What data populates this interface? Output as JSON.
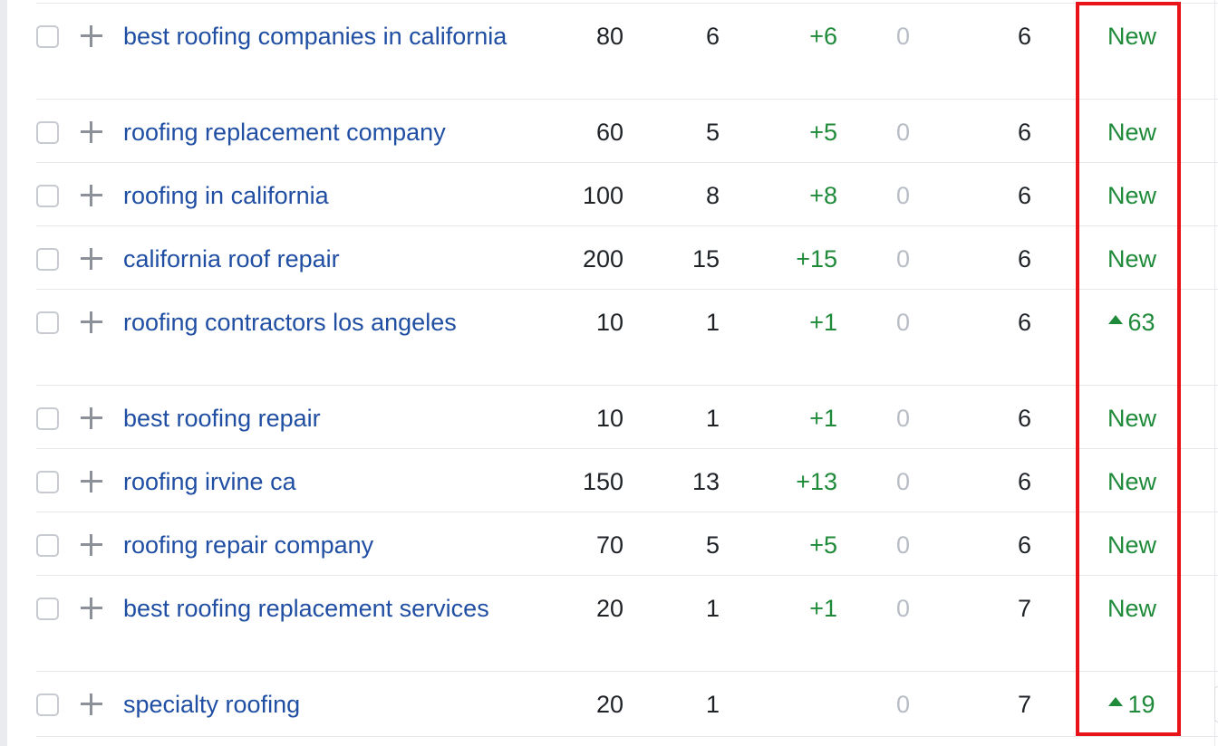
{
  "rows": [
    {
      "keyword": "best roofing companies in california",
      "volume": "80",
      "kd": "6",
      "change": "+6",
      "zero": "0",
      "position": "6",
      "status": "New",
      "status_type": "new"
    },
    {
      "keyword": "roofing replacement company",
      "volume": "60",
      "kd": "5",
      "change": "+5",
      "zero": "0",
      "position": "6",
      "status": "New",
      "status_type": "new"
    },
    {
      "keyword": "roofing in california",
      "volume": "100",
      "kd": "8",
      "change": "+8",
      "zero": "0",
      "position": "6",
      "status": "New",
      "status_type": "new"
    },
    {
      "keyword": "california roof repair",
      "volume": "200",
      "kd": "15",
      "change": "+15",
      "zero": "0",
      "position": "6",
      "status": "New",
      "status_type": "new"
    },
    {
      "keyword": "roofing contractors los angeles",
      "volume": "10",
      "kd": "1",
      "change": "+1",
      "zero": "0",
      "position": "6",
      "status": "63",
      "status_type": "up"
    },
    {
      "keyword": "best roofing repair",
      "volume": "10",
      "kd": "1",
      "change": "+1",
      "zero": "0",
      "position": "6",
      "status": "New",
      "status_type": "new"
    },
    {
      "keyword": "roofing irvine ca",
      "volume": "150",
      "kd": "13",
      "change": "+13",
      "zero": "0",
      "position": "6",
      "status": "New",
      "status_type": "new"
    },
    {
      "keyword": "roofing repair company",
      "volume": "70",
      "kd": "5",
      "change": "+5",
      "zero": "0",
      "position": "6",
      "status": "New",
      "status_type": "new"
    },
    {
      "keyword": "best roofing replacement services",
      "volume": "20",
      "kd": "1",
      "change": "+1",
      "zero": "0",
      "position": "7",
      "status": "New",
      "status_type": "new"
    },
    {
      "keyword": "specialty roofing",
      "volume": "20",
      "kd": "1",
      "change": "",
      "zero": "0",
      "position": "7",
      "status": "19",
      "status_type": "up"
    }
  ],
  "icons": {
    "add": "plus-icon",
    "trend": "up-arrow-icon"
  },
  "colors": {
    "keyword": "#1f4ea3",
    "positive": "#1f8a3a",
    "muted": "#b8bcc4",
    "highlight": "#e8141a"
  }
}
